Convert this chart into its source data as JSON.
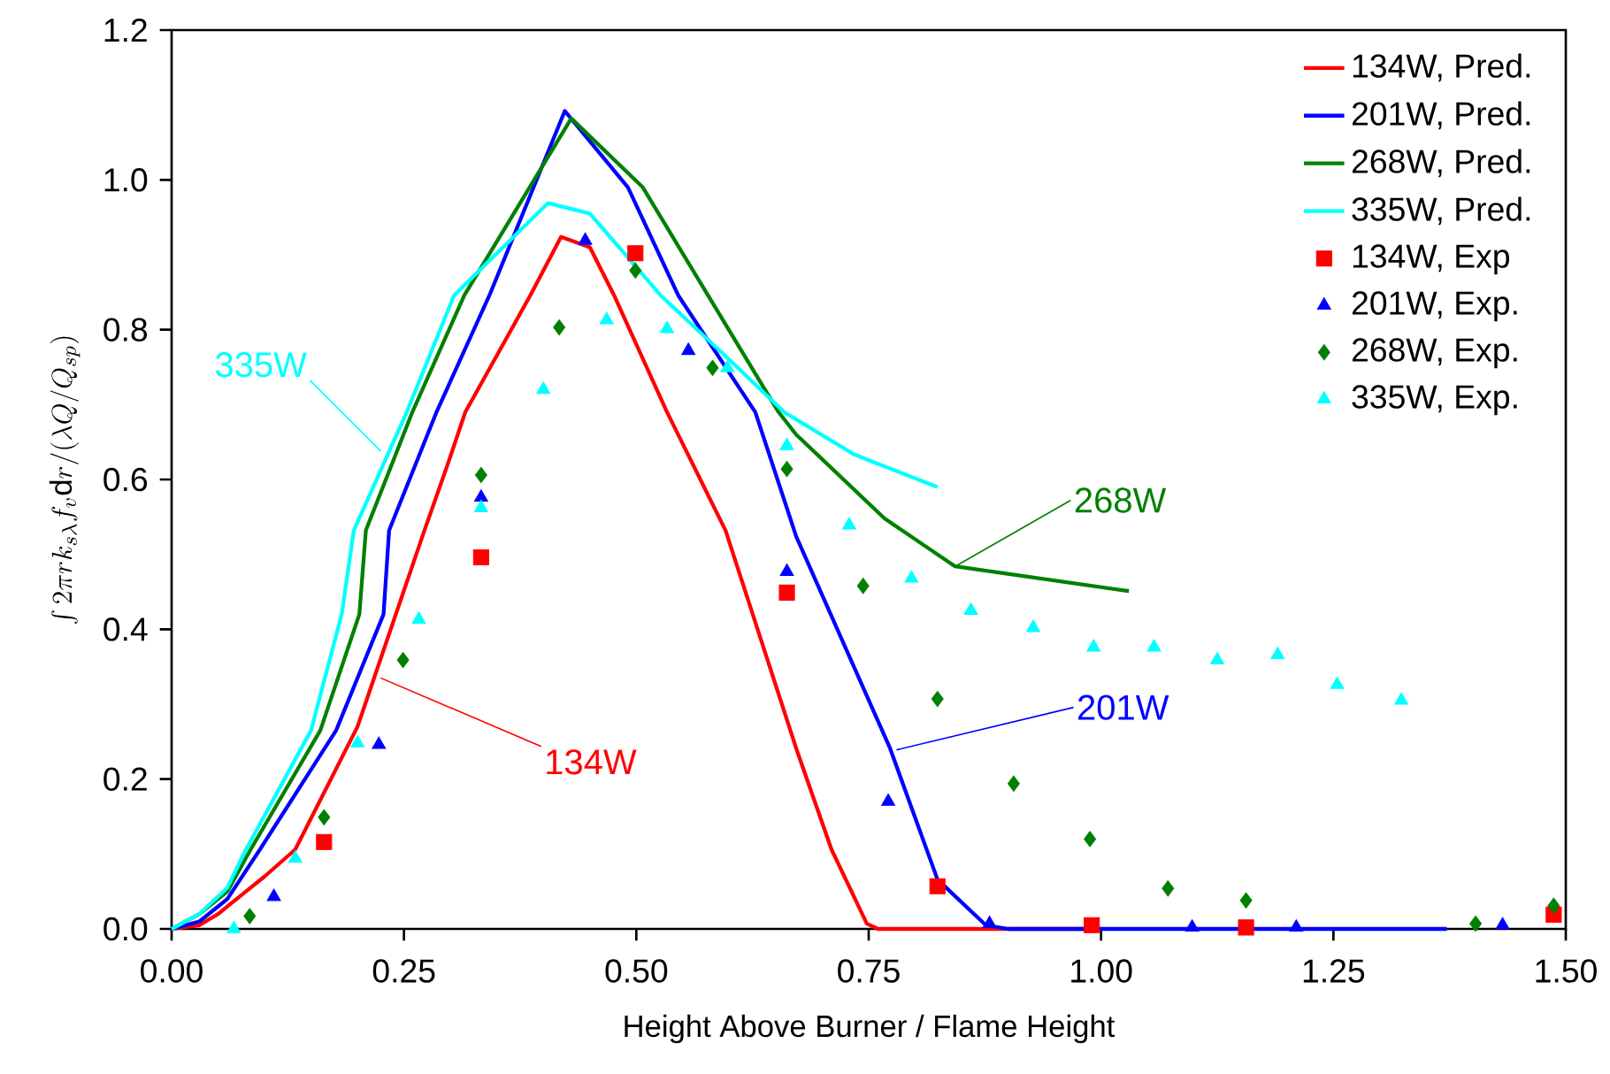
{
  "chart_data": {
    "type": "line",
    "xlabel": "Height Above Burner / Flame Height",
    "ylabel": "\\int 2\\pi r k_{s\\lambda} f_v \\mathrm{d}r/(\\lambda Q/Q_{sp})",
    "xlim": [
      0,
      1.5
    ],
    "ylim": [
      0,
      1.2
    ],
    "xticks": [
      {
        "value": 0,
        "label": "0.00"
      },
      {
        "value": 0.25,
        "label": "0.25"
      },
      {
        "value": 0.5,
        "label": "0.50"
      },
      {
        "value": 0.75,
        "label": "0.75"
      },
      {
        "value": 1.0,
        "label": "1.00"
      },
      {
        "value": 1.25,
        "label": "1.25"
      },
      {
        "value": 1.5,
        "label": "1.50"
      }
    ],
    "yticks": [
      {
        "value": 0,
        "label": "0.0"
      },
      {
        "value": 0.2,
        "label": "0.2"
      },
      {
        "value": 0.4,
        "label": "0.4"
      },
      {
        "value": 0.6,
        "label": "0.6"
      },
      {
        "value": 0.8,
        "label": "0.8"
      },
      {
        "value": 1.0,
        "label": "1.0"
      },
      {
        "value": 1.2,
        "label": "1.2"
      }
    ],
    "legend": "top right",
    "grid": false,
    "series": [
      {
        "name": "134W, Pred.",
        "color": "#ff0000",
        "x": [
          0,
          0.03,
          0.05,
          0.08,
          0.1,
          0.133,
          0.2,
          0.272,
          0.297,
          0.316,
          0.386,
          0.419,
          0.45,
          0.476,
          0.533,
          0.596,
          0.672,
          0.71,
          0.748,
          0.76,
          0.8,
          1.0
        ],
        "values": [
          0,
          0.005,
          0.02,
          0.05,
          0.07,
          0.106,
          0.27,
          0.532,
          0.62,
          0.69,
          0.846,
          0.924,
          0.91,
          0.846,
          0.69,
          0.532,
          0.241,
          0.106,
          0.007,
          0,
          0,
          0
        ]
      },
      {
        "name": "201W, Pred.",
        "color": "#0000ff",
        "x": [
          0,
          0.03,
          0.06,
          0.095,
          0.177,
          0.228,
          0.234,
          0.285,
          0.342,
          0.423,
          0.491,
          0.545,
          0.628,
          0.672,
          0.773,
          0.824,
          0.876,
          0.9,
          1.372
        ],
        "values": [
          0,
          0.01,
          0.04,
          0.106,
          0.265,
          0.42,
          0.532,
          0.69,
          0.846,
          1.092,
          0.99,
          0.846,
          0.69,
          0.524,
          0.241,
          0.066,
          0.005,
          0,
          0
        ]
      },
      {
        "name": "268W, Pred.",
        "color": "#008000",
        "x": [
          0,
          0.03,
          0.06,
          0.085,
          0.16,
          0.202,
          0.209,
          0.259,
          0.315,
          0.43,
          0.507,
          0.577,
          0.653,
          0.672,
          0.767,
          0.843,
          1.03
        ],
        "values": [
          0,
          0.02,
          0.05,
          0.106,
          0.265,
          0.42,
          0.532,
          0.69,
          0.846,
          1.082,
          0.99,
          0.846,
          0.69,
          0.66,
          0.548,
          0.484,
          0.451
        ]
      },
      {
        "name": "335W, Pred.",
        "color": "#00ffff",
        "x": [
          0,
          0.03,
          0.06,
          0.08,
          0.15,
          0.183,
          0.196,
          0.253,
          0.304,
          0.405,
          0.45,
          0.526,
          0.6,
          0.659,
          0.735,
          0.824
        ],
        "values": [
          0,
          0.02,
          0.055,
          0.106,
          0.265,
          0.42,
          0.532,
          0.69,
          0.846,
          0.969,
          0.955,
          0.846,
          0.76,
          0.69,
          0.633,
          0.59
        ]
      },
      {
        "name": "134W, Exp",
        "type": "scatter",
        "marker": "square",
        "color": "#ff0000",
        "x": [
          0.164,
          0.333,
          0.499,
          0.662,
          0.824,
          0.99,
          1.156,
          1.487
        ],
        "values": [
          0.116,
          0.496,
          0.902,
          0.449,
          0.057,
          0.005,
          0.002,
          0.019
        ]
      },
      {
        "name": "201W, Exp.",
        "type": "scatter",
        "marker": "triangle",
        "color": "#0000ff",
        "x": [
          0.11,
          0.223,
          0.333,
          0.445,
          0.556,
          0.662,
          0.771,
          0.88,
          1.098,
          1.21,
          1.432
        ],
        "values": [
          0.043,
          0.246,
          0.576,
          0.919,
          0.772,
          0.477,
          0.17,
          0.007,
          0.002,
          0.002,
          0.005
        ]
      },
      {
        "name": "268W, Exp.",
        "type": "scatter",
        "marker": "diamond",
        "color": "#008000",
        "x": [
          0.084,
          0.164,
          0.249,
          0.333,
          0.417,
          0.499,
          0.582,
          0.662,
          0.744,
          0.824,
          0.906,
          0.988,
          1.072,
          1.156,
          1.403,
          1.487
        ],
        "values": [
          0.017,
          0.149,
          0.359,
          0.606,
          0.803,
          0.879,
          0.749,
          0.614,
          0.458,
          0.307,
          0.194,
          0.12,
          0.054,
          0.038,
          0.007,
          0.031
        ]
      },
      {
        "name": "335W, Exp.",
        "type": "scatter",
        "marker": "triangle",
        "color": "#00ffff",
        "x": [
          0.067,
          0.133,
          0.2,
          0.266,
          0.333,
          0.4,
          0.468,
          0.533,
          0.598,
          0.662,
          0.729,
          0.796,
          0.86,
          0.927,
          0.992,
          1.057,
          1.125,
          1.19,
          1.254,
          1.323
        ],
        "values": [
          0.0,
          0.094,
          0.248,
          0.413,
          0.562,
          0.72,
          0.813,
          0.801,
          0.749,
          0.645,
          0.539,
          0.468,
          0.425,
          0.402,
          0.376,
          0.376,
          0.359,
          0.366,
          0.326,
          0.305
        ]
      }
    ],
    "annotations": [
      {
        "text": "335W",
        "x": 0.225,
        "y": 0.638
      },
      {
        "text": "134W",
        "x": 0.225,
        "y": 0.335
      },
      {
        "text": "201W",
        "x": 0.78,
        "y": 0.239
      },
      {
        "text": "268W",
        "x": 0.843,
        "y": 0.484
      }
    ]
  }
}
